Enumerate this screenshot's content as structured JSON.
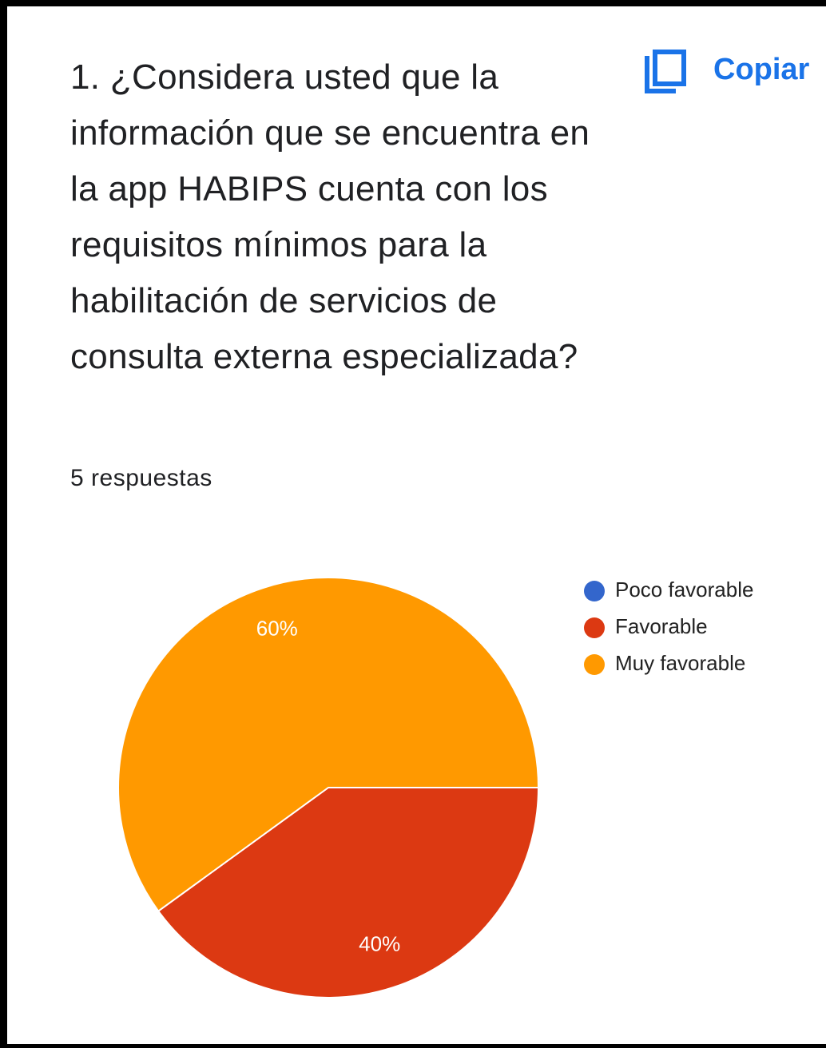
{
  "chart_data": {
    "type": "pie",
    "title": "1. ¿Considera usted que la información que se encuentra en la app HABIPS cuenta con los requisitos mínimos para la habilitación de servicios de consulta externa especializada?",
    "subtitle": "5 respuestas",
    "action": "Copiar",
    "categories": [
      "Poco favorable",
      "Favorable",
      "Muy favorable"
    ],
    "values": [
      0,
      40,
      60
    ],
    "value_labels": [
      null,
      "40%",
      "60%"
    ],
    "colors": [
      "#3366cc",
      "#dc3912",
      "#ff9900"
    ],
    "legend": "right"
  }
}
